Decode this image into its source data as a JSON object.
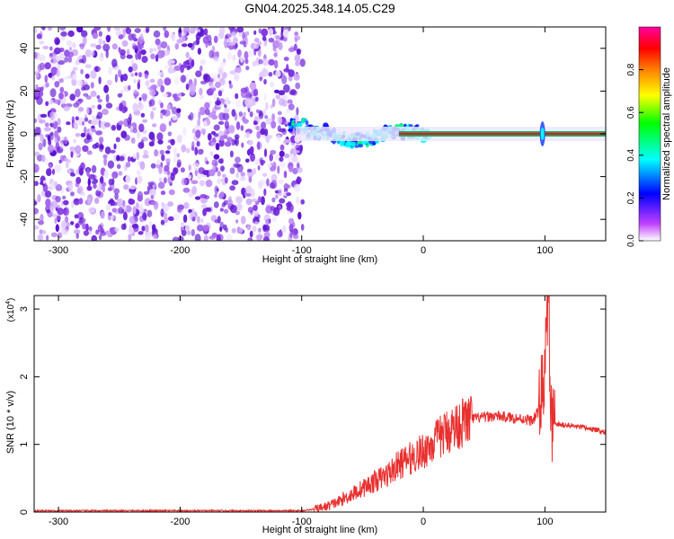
{
  "figure": {
    "title": "GN04.2025.348.14.05.C29"
  },
  "chart_data": [
    {
      "type": "heatmap",
      "xlabel": "Height of straight line (km)",
      "ylabel": "Frequency (Hz)",
      "xlim": [
        -320,
        150
      ],
      "ylim": [
        -50,
        50
      ],
      "x_ticks": [
        -300,
        -200,
        -100,
        0,
        100
      ],
      "y_ticks": [
        -40,
        -20,
        0,
        20,
        40
      ],
      "colorbar": {
        "label": "Normalized spectral amplitude",
        "range": [
          0,
          1
        ],
        "ticks": [
          0.0,
          0.2,
          0.4,
          0.6,
          0.8
        ]
      },
      "features": {
        "noise_region_x": [
          -320,
          -105
        ],
        "carrier_frequency_hz": 0,
        "carrier_start_x": -105,
        "spike_x": 98
      },
      "colors": {
        "noise": "#7a2be0",
        "carrier": "#e8132a",
        "colormap": [
          "#ffffff",
          "#c040ff",
          "#0000ff",
          "#00ffff",
          "#00ff00",
          "#ffff00",
          "#ff8000",
          "#ff0000",
          "#ff00a0"
        ]
      }
    },
    {
      "type": "line",
      "xlabel": "Height of straight line (km)",
      "ylabel": "SNR (10 * v/v)",
      "multiplier_label": "(x10",
      "multiplier_exp": "4",
      "multiplier_close": ")",
      "xlim": [
        -320,
        150
      ],
      "ylim": [
        0,
        3.2
      ],
      "x_ticks": [
        -300,
        -200,
        -100,
        0,
        100
      ],
      "y_ticks": [
        0,
        1,
        2,
        3
      ],
      "series": [
        {
          "color": "#e8302f",
          "x": [
            -320,
            -200,
            -120,
            -100,
            -90,
            -80,
            -70,
            -60,
            -50,
            -40,
            -30,
            -20,
            -10,
            0,
            10,
            20,
            30,
            40,
            50,
            60,
            70,
            80,
            90,
            95,
            100,
            103,
            105,
            108,
            120,
            140,
            150
          ],
          "y": [
            0.02,
            0.02,
            0.02,
            0.02,
            0.04,
            0.08,
            0.15,
            0.25,
            0.35,
            0.45,
            0.55,
            0.7,
            0.8,
            0.9,
            1.05,
            1.2,
            1.3,
            1.38,
            1.4,
            1.42,
            1.4,
            1.38,
            1.35,
            1.5,
            2.1,
            3.2,
            1.3,
            1.3,
            1.28,
            1.22,
            1.18
          ]
        }
      ]
    }
  ]
}
